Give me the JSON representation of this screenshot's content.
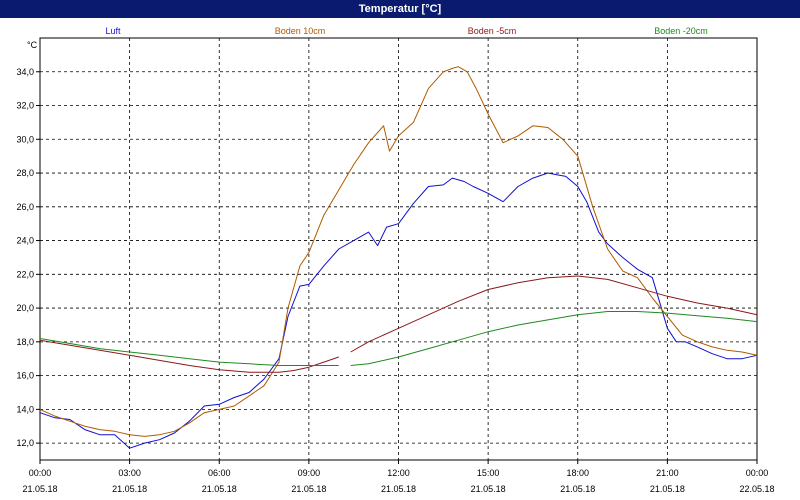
{
  "window": {
    "title": "Temperatur [°C]"
  },
  "chart_data": {
    "type": "line",
    "title": "Temperatur [°C]",
    "yunit": "°C",
    "ylim": [
      11,
      36
    ],
    "xlim_hours": [
      0,
      24
    ],
    "grid": true,
    "legend_placement": "top",
    "yticks": [
      "12,0",
      "14,0",
      "16,0",
      "18,0",
      "20,0",
      "22,0",
      "24,0",
      "26,0",
      "28,0",
      "30,0",
      "32,0",
      "34,0"
    ],
    "xticks": [
      {
        "time": "00:00",
        "date": "21.05.18"
      },
      {
        "time": "03:00",
        "date": "21.05.18"
      },
      {
        "time": "06:00",
        "date": "21.05.18"
      },
      {
        "time": "09:00",
        "date": "21.05.18"
      },
      {
        "time": "12:00",
        "date": "21.05.18"
      },
      {
        "time": "15:00",
        "date": "21.05.18"
      },
      {
        "time": "18:00",
        "date": "21.05.18"
      },
      {
        "time": "21:00",
        "date": "21.05.18"
      },
      {
        "time": "00:00",
        "date": "22.05.18"
      }
    ],
    "series": [
      {
        "name": "Luft",
        "color": "#1010d0",
        "points": [
          [
            0,
            13.8
          ],
          [
            0.5,
            13.5
          ],
          [
            1,
            13.4
          ],
          [
            1.5,
            12.8
          ],
          [
            2,
            12.5
          ],
          [
            2.5,
            12.5
          ],
          [
            3,
            11.7
          ],
          [
            3.5,
            12
          ],
          [
            4,
            12.2
          ],
          [
            4.5,
            12.6
          ],
          [
            5,
            13.3
          ],
          [
            5.5,
            14.2
          ],
          [
            6,
            14.3
          ],
          [
            6.5,
            14.7
          ],
          [
            7,
            15
          ],
          [
            7.5,
            15.8
          ],
          [
            8,
            17
          ],
          [
            8.3,
            19.5
          ],
          [
            8.7,
            21.3
          ],
          [
            9,
            21.4
          ],
          [
            9.5,
            22.5
          ],
          [
            10,
            23.5
          ],
          [
            10.5,
            24
          ],
          [
            11,
            24.5
          ],
          [
            11.3,
            23.7
          ],
          [
            11.6,
            24.8
          ],
          [
            12,
            25
          ],
          [
            12.5,
            26.2
          ],
          [
            13,
            27.2
          ],
          [
            13.5,
            27.3
          ],
          [
            13.8,
            27.7
          ],
          [
            14.2,
            27.5
          ],
          [
            14.5,
            27.2
          ],
          [
            15,
            26.8
          ],
          [
            15.5,
            26.3
          ],
          [
            16,
            27.2
          ],
          [
            16.5,
            27.7
          ],
          [
            17,
            28
          ],
          [
            17.3,
            27.9
          ],
          [
            17.6,
            27.8
          ],
          [
            18,
            27.2
          ],
          [
            18.3,
            26.3
          ],
          [
            18.7,
            24.5
          ],
          [
            19,
            23.8
          ],
          [
            19.5,
            23
          ],
          [
            20,
            22.3
          ],
          [
            20.5,
            21.8
          ],
          [
            21,
            18.8
          ],
          [
            21.3,
            18
          ],
          [
            21.6,
            18
          ],
          [
            22,
            17.7
          ],
          [
            22.5,
            17.3
          ],
          [
            23,
            17
          ],
          [
            23.5,
            17
          ],
          [
            24,
            17.2
          ]
        ]
      },
      {
        "name": "Boden 10cm",
        "color": "#b05a00",
        "points": [
          [
            0,
            14
          ],
          [
            0.5,
            13.6
          ],
          [
            1,
            13.3
          ],
          [
            1.5,
            13
          ],
          [
            2,
            12.8
          ],
          [
            2.5,
            12.7
          ],
          [
            3,
            12.5
          ],
          [
            3.5,
            12.4
          ],
          [
            4,
            12.5
          ],
          [
            4.5,
            12.7
          ],
          [
            5,
            13.2
          ],
          [
            5.5,
            13.8
          ],
          [
            6,
            14
          ],
          [
            6.5,
            14.2
          ],
          [
            7,
            14.8
          ],
          [
            7.5,
            15.4
          ],
          [
            8,
            16.8
          ],
          [
            8.3,
            20
          ],
          [
            8.7,
            22.5
          ],
          [
            9,
            23.3
          ],
          [
            9.5,
            25.5
          ],
          [
            10,
            27
          ],
          [
            10.5,
            28.5
          ],
          [
            11,
            29.8
          ],
          [
            11.5,
            30.8
          ],
          [
            11.7,
            29.3
          ],
          [
            12,
            30.2
          ],
          [
            12.5,
            31
          ],
          [
            13,
            33
          ],
          [
            13.5,
            34
          ],
          [
            13.8,
            34.2
          ],
          [
            14,
            34.3
          ],
          [
            14.3,
            34
          ],
          [
            14.6,
            33
          ],
          [
            15,
            31.5
          ],
          [
            15.5,
            29.8
          ],
          [
            16,
            30.2
          ],
          [
            16.5,
            30.8
          ],
          [
            17,
            30.7
          ],
          [
            17.5,
            30
          ],
          [
            18,
            29
          ],
          [
            18.5,
            26
          ],
          [
            19,
            23.5
          ],
          [
            19.5,
            22.2
          ],
          [
            20,
            21.8
          ],
          [
            20.5,
            20.6
          ],
          [
            21,
            19.5
          ],
          [
            21.5,
            18.4
          ],
          [
            22,
            18
          ],
          [
            22.5,
            17.7
          ],
          [
            23,
            17.5
          ],
          [
            23.5,
            17.4
          ],
          [
            24,
            17.2
          ]
        ]
      },
      {
        "name": "Boden -5cm",
        "color": "#8b1a1a",
        "segments": [
          [
            [
              0,
              18.1
            ],
            [
              1,
              17.8
            ],
            [
              2,
              17.5
            ],
            [
              3,
              17.2
            ],
            [
              4,
              16.9
            ],
            [
              5,
              16.6
            ],
            [
              6,
              16.35
            ],
            [
              7,
              16.2
            ],
            [
              8,
              16.2
            ],
            [
              8.5,
              16.3
            ],
            [
              9,
              16.5
            ],
            [
              9.5,
              16.8
            ],
            [
              10,
              17.1
            ]
          ],
          [
            [
              10.4,
              17.4
            ],
            [
              11,
              18
            ],
            [
              12,
              18.8
            ],
            [
              13,
              19.6
            ],
            [
              14,
              20.4
            ],
            [
              15,
              21.1
            ],
            [
              16,
              21.5
            ],
            [
              17,
              21.8
            ],
            [
              18,
              21.9
            ],
            [
              19,
              21.7
            ],
            [
              20,
              21.2
            ],
            [
              21,
              20.7
            ],
            [
              22,
              20.3
            ],
            [
              23,
              20
            ],
            [
              24,
              19.6
            ]
          ]
        ]
      },
      {
        "name": "Boden -20cm",
        "color": "#1e8a1e",
        "segments": [
          [
            [
              0,
              18.2
            ],
            [
              1,
              17.9
            ],
            [
              2,
              17.6
            ],
            [
              3,
              17.4
            ],
            [
              4,
              17.2
            ],
            [
              5,
              17
            ],
            [
              6,
              16.8
            ],
            [
              7,
              16.7
            ],
            [
              8,
              16.6
            ],
            [
              9,
              16.6
            ],
            [
              10,
              16.6
            ]
          ],
          [
            [
              10.4,
              16.6
            ],
            [
              11,
              16.7
            ],
            [
              12,
              17.1
            ],
            [
              13,
              17.6
            ],
            [
              14,
              18.1
            ],
            [
              15,
              18.6
            ],
            [
              16,
              19
            ],
            [
              17,
              19.3
            ],
            [
              18,
              19.6
            ],
            [
              19,
              19.8
            ],
            [
              20,
              19.8
            ],
            [
              21,
              19.7
            ],
            [
              22,
              19.55
            ],
            [
              23,
              19.4
            ],
            [
              24,
              19.2
            ]
          ]
        ]
      }
    ]
  }
}
